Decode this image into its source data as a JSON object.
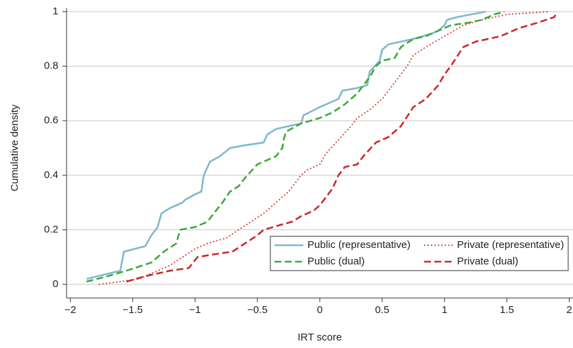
{
  "chart_data": {
    "type": "line",
    "x_label": "IRT score",
    "y_label": "Cumulative density",
    "xlim": [
      -2.03,
      2.03
    ],
    "ylim": [
      -0.05,
      1
    ],
    "xticks": [
      {
        "value": -2,
        "label": "−2"
      },
      {
        "value": -1.5,
        "label": "−1.5"
      },
      {
        "value": -1,
        "label": "−1"
      },
      {
        "value": -0.5,
        "label": "−0.5"
      },
      0,
      0.5,
      1,
      1.5,
      2
    ],
    "yticks": [
      0,
      0.2,
      0.4,
      0.6,
      0.8,
      1
    ],
    "grid": true,
    "legend_position": "bottom right",
    "series": [
      {
        "name": "Public (representative)",
        "color": "#7fb9cc",
        "dash": "solid",
        "x": [
          -1.87,
          -1.6,
          -1.57,
          -1.4,
          -1.35,
          -1.3,
          -1.27,
          -1.2,
          -1.1,
          -1.08,
          -1.0,
          -0.95,
          -0.93,
          -0.88,
          -0.8,
          -0.72,
          -0.6,
          -0.45,
          -0.42,
          -0.35,
          -0.25,
          -0.15,
          -0.13,
          0,
          0.15,
          0.18,
          0.3,
          0.38,
          0.4,
          0.48,
          0.5,
          0.55,
          0.75,
          0.9,
          0.95,
          1.0,
          1.02,
          1.1,
          1.33
        ],
        "values": [
          0.02,
          0.05,
          0.12,
          0.14,
          0.18,
          0.21,
          0.26,
          0.28,
          0.3,
          0.31,
          0.33,
          0.34,
          0.4,
          0.45,
          0.47,
          0.5,
          0.51,
          0.52,
          0.55,
          0.57,
          0.58,
          0.59,
          0.62,
          0.65,
          0.68,
          0.71,
          0.72,
          0.73,
          0.78,
          0.82,
          0.86,
          0.88,
          0.9,
          0.92,
          0.93,
          0.95,
          0.97,
          0.98,
          1.0
        ]
      },
      {
        "name": "Private (representative)",
        "color": "#d23b3b",
        "dash": "dotted",
        "x": [
          -1.77,
          -1.6,
          -1.45,
          -1.35,
          -1.2,
          -1.1,
          -1.0,
          -0.9,
          -0.75,
          -0.65,
          -0.55,
          -0.45,
          -0.35,
          -0.25,
          -0.2,
          -0.15,
          -0.1,
          0.0,
          0.05,
          0.15,
          0.25,
          0.3,
          0.4,
          0.5,
          0.6,
          0.7,
          0.75,
          0.85,
          1.0,
          1.15,
          1.3,
          1.5,
          1.83
        ],
        "values": [
          0,
          0.01,
          0.02,
          0.04,
          0.07,
          0.1,
          0.13,
          0.15,
          0.17,
          0.2,
          0.23,
          0.26,
          0.3,
          0.34,
          0.37,
          0.4,
          0.42,
          0.44,
          0.48,
          0.53,
          0.58,
          0.61,
          0.64,
          0.68,
          0.74,
          0.8,
          0.84,
          0.87,
          0.91,
          0.95,
          0.97,
          0.99,
          1.0
        ]
      },
      {
        "name": "Public (dual)",
        "color": "#3dab3a",
        "dash": "dashed",
        "x": [
          -1.87,
          -1.7,
          -1.55,
          -1.35,
          -1.3,
          -1.25,
          -1.15,
          -1.12,
          -1.0,
          -0.9,
          -0.85,
          -0.78,
          -0.72,
          -0.65,
          -0.6,
          -0.5,
          -0.35,
          -0.3,
          -0.29,
          -0.27,
          -0.15,
          0,
          0.1,
          0.2,
          0.3,
          0.4,
          0.45,
          0.5,
          0.6,
          0.65,
          0.75,
          0.85,
          1.0,
          1.05,
          1.2,
          1.3,
          1.4,
          1.48
        ],
        "values": [
          0.01,
          0.03,
          0.05,
          0.08,
          0.1,
          0.12,
          0.15,
          0.2,
          0.21,
          0.23,
          0.26,
          0.3,
          0.34,
          0.36,
          0.39,
          0.44,
          0.47,
          0.5,
          0.53,
          0.56,
          0.59,
          0.61,
          0.63,
          0.66,
          0.7,
          0.76,
          0.8,
          0.82,
          0.83,
          0.87,
          0.9,
          0.91,
          0.94,
          0.95,
          0.96,
          0.97,
          0.99,
          1.0
        ]
      },
      {
        "name": "Private (dual)",
        "color": "#cc2a2a",
        "dash": "dashed",
        "x": [
          -1.55,
          -1.4,
          -1.3,
          -1.2,
          -1.05,
          -0.98,
          -0.85,
          -0.7,
          -0.6,
          -0.5,
          -0.45,
          -0.3,
          -0.22,
          -0.15,
          -0.05,
          0.0,
          0.1,
          0.15,
          0.2,
          0.3,
          0.35,
          0.45,
          0.55,
          0.65,
          0.75,
          0.85,
          0.95,
          1.0,
          1.05,
          1.15,
          1.25,
          1.35,
          1.45,
          1.6,
          1.75,
          1.88,
          1.9
        ],
        "values": [
          0.01,
          0.03,
          0.04,
          0.05,
          0.06,
          0.1,
          0.11,
          0.12,
          0.15,
          0.18,
          0.2,
          0.22,
          0.23,
          0.25,
          0.27,
          0.29,
          0.35,
          0.4,
          0.43,
          0.44,
          0.47,
          0.52,
          0.54,
          0.58,
          0.65,
          0.68,
          0.73,
          0.77,
          0.8,
          0.87,
          0.89,
          0.9,
          0.91,
          0.94,
          0.96,
          0.98,
          1.0
        ]
      }
    ]
  }
}
